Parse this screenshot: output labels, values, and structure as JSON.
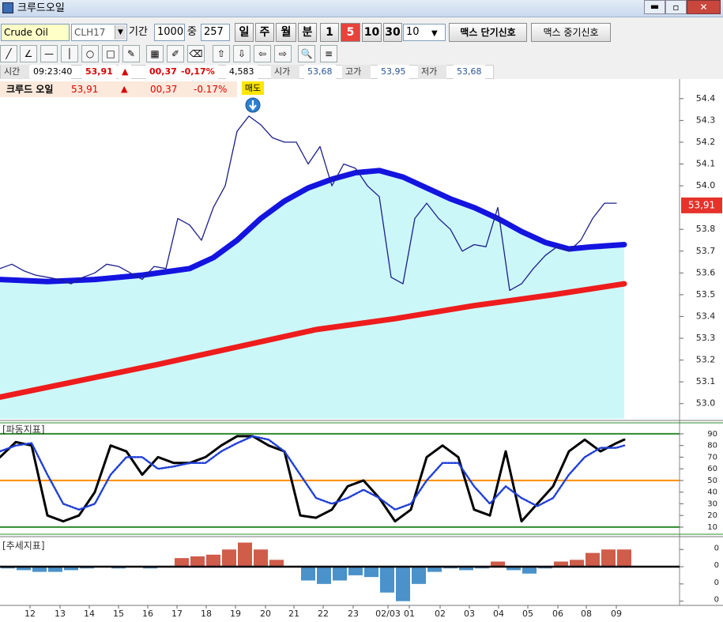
{
  "window": {
    "title": "크루드오일"
  },
  "toolbar": {
    "symbol": "Crude Oil",
    "code": "CLH17",
    "period_label": "기간",
    "period": "1000",
    "mid_label": "중",
    "mid": "257",
    "units": [
      "일",
      "주",
      "월",
      "분"
    ],
    "minutes": [
      "1",
      "5",
      "10",
      "30"
    ],
    "selected_minute": "5",
    "interval": "10",
    "buttons": [
      "맥스 단기신호",
      "맥스 중기신호"
    ]
  },
  "quote_bar": {
    "time_label": "시간",
    "time": "09:23:40",
    "price": "53,91",
    "change": "00,37",
    "change_pct": "-0,17%",
    "volume": "4,583",
    "open_label": "시가",
    "open": "53,68",
    "high_label": "고가",
    "high": "53,95",
    "low_label": "저가",
    "low": "53,68"
  },
  "chart_header": {
    "name": "크루드 오일",
    "price": "53,91",
    "arrow": "▲",
    "change": "00,37",
    "change_pct": "-0.17%"
  },
  "x_axis": {
    "xlim": [
      0,
      172
    ],
    "xticks": [
      {
        "value": 7.6,
        "label": "12"
      },
      {
        "value": 15.2,
        "label": "13"
      },
      {
        "value": 22.6,
        "label": "14"
      },
      {
        "value": 30,
        "label": "15"
      },
      {
        "value": 37.4,
        "label": "16"
      },
      {
        "value": 44.8,
        "label": "17"
      },
      {
        "value": 52.2,
        "label": "18"
      },
      {
        "value": 59.6,
        "label": "19"
      },
      {
        "value": 67.2,
        "label": "20"
      },
      {
        "value": 74.4,
        "label": "21"
      },
      {
        "value": 81.8,
        "label": "22"
      },
      {
        "value": 89.4,
        "label": "23"
      },
      {
        "value": 98.2,
        "label": "02/03"
      },
      {
        "value": 103.6,
        "label": "01"
      },
      {
        "value": 111.4,
        "label": "02"
      },
      {
        "value": 118.8,
        "label": "03"
      },
      {
        "value": 126.2,
        "label": "04"
      },
      {
        "value": 133.6,
        "label": "05"
      },
      {
        "value": 141.2,
        "label": "06"
      },
      {
        "value": 148.4,
        "label": "08"
      },
      {
        "value": 156,
        "label": "09"
      }
    ]
  },
  "price_chart": {
    "type": "line",
    "ylim": [
      52.93,
      54.49
    ],
    "yticks": [
      54.4,
      54.3,
      54.2,
      54.1,
      {
        "value": 54,
        "label": "54.0"
      },
      53.8,
      53.7,
      53.6,
      53.5,
      53.4,
      53.3,
      53.2,
      53.1,
      {
        "value": 53,
        "label": "53.0"
      }
    ],
    "last_label": "53,91",
    "last_value": 53.91,
    "signal": {
      "label": "매도",
      "x": 64
    },
    "area_color": "#ccf7f9",
    "series": [
      {
        "color": "#1b1f8a",
        "x": [
          0,
          3,
          6,
          9,
          12,
          15,
          18,
          21,
          24,
          27,
          30,
          33,
          36,
          39,
          42,
          45,
          48,
          51,
          54,
          57,
          60,
          63,
          66,
          69,
          72,
          75,
          78,
          81,
          84,
          87,
          90,
          93,
          96,
          99,
          102,
          105,
          108,
          111,
          114,
          117,
          120,
          123,
          126,
          129,
          132,
          135,
          138,
          141,
          144,
          147,
          150,
          153,
          156
        ],
        "values": [
          53.62,
          53.64,
          53.61,
          53.59,
          53.58,
          53.57,
          53.55,
          53.58,
          53.6,
          53.64,
          53.63,
          53.6,
          53.57,
          53.63,
          53.62,
          53.85,
          53.82,
          53.75,
          53.9,
          54.0,
          54.25,
          54.32,
          54.28,
          54.22,
          54.2,
          54.2,
          54.1,
          54.18,
          54.0,
          54.1,
          54.08,
          54.0,
          53.95,
          53.58,
          53.55,
          53.85,
          53.92,
          53.85,
          53.8,
          53.7,
          53.73,
          53.72,
          53.9,
          53.52,
          53.55,
          53.62,
          53.68,
          53.72,
          53.7,
          53.75,
          53.85,
          53.92,
          53.92
        ]
      },
      {
        "color": "#1414e0",
        "x": [
          0,
          12,
          24,
          36,
          48,
          54,
          60,
          66,
          72,
          78,
          84,
          90,
          96,
          102,
          108,
          114,
          120,
          126,
          132,
          138,
          144,
          150,
          158
        ],
        "values": [
          53.57,
          53.56,
          53.57,
          53.59,
          53.62,
          53.67,
          53.75,
          53.85,
          53.93,
          53.99,
          54.03,
          54.06,
          54.07,
          54.04,
          53.99,
          53.94,
          53.9,
          53.85,
          53.79,
          53.74,
          53.71,
          53.72,
          53.73
        ]
      },
      {
        "color": "#ee1c1c",
        "x": [
          0,
          40,
          80,
          100,
          120,
          140,
          158
        ],
        "values": [
          53.03,
          53.18,
          53.34,
          53.39,
          53.45,
          53.5,
          53.55
        ]
      }
    ]
  },
  "oscillator": {
    "title": "[파동지표]",
    "type": "line",
    "ylim": [
      2.5,
      100.8
    ],
    "yticks": [
      90,
      80,
      70,
      60,
      50,
      40,
      30,
      20,
      10
    ],
    "levels": [
      {
        "value": 90,
        "color": "#2e8b2e"
      },
      {
        "value": 10,
        "color": "#2e8b2e"
      },
      {
        "value": 50,
        "color": "#ff8c00"
      }
    ],
    "series": [
      {
        "color": "#000000",
        "x": [
          0,
          4,
          8,
          12,
          16,
          20,
          24,
          28,
          32,
          36,
          40,
          44,
          48,
          52,
          56,
          60,
          64,
          68,
          72,
          76,
          80,
          84,
          88,
          92,
          96,
          100,
          104,
          108,
          112,
          116,
          120,
          124,
          128,
          132,
          136,
          140,
          144,
          148,
          152,
          156,
          158
        ],
        "values": [
          70,
          83,
          80,
          20,
          15,
          20,
          40,
          80,
          75,
          55,
          70,
          65,
          65,
          70,
          80,
          88,
          88,
          80,
          75,
          20,
          18,
          25,
          45,
          50,
          35,
          15,
          25,
          70,
          80,
          70,
          25,
          20,
          75,
          15,
          30,
          45,
          75,
          85,
          75,
          82,
          85
        ]
      },
      {
        "color": "#1f3fd6",
        "x": [
          0,
          4,
          8,
          12,
          16,
          20,
          24,
          28,
          32,
          36,
          40,
          44,
          48,
          52,
          56,
          60,
          64,
          68,
          72,
          76,
          80,
          84,
          88,
          92,
          96,
          100,
          104,
          108,
          112,
          116,
          120,
          124,
          128,
          132,
          136,
          140,
          144,
          148,
          152,
          156,
          158
        ],
        "values": [
          75,
          80,
          82,
          55,
          30,
          25,
          30,
          55,
          70,
          70,
          60,
          62,
          65,
          65,
          75,
          82,
          88,
          85,
          75,
          55,
          35,
          30,
          35,
          42,
          35,
          25,
          30,
          50,
          65,
          65,
          45,
          30,
          45,
          35,
          28,
          35,
          55,
          70,
          78,
          78,
          80
        ]
      }
    ]
  },
  "trend": {
    "title": "[추세지표]",
    "type": "bar",
    "ylim": [
      -0.022,
      0.017
    ],
    "yticks": [
      {
        "value": 0.01,
        "label": "0"
      },
      {
        "value": 0,
        "label": "0"
      },
      {
        "value": -0.01,
        "label": "0"
      },
      {
        "value": -0.02,
        "label": "0"
      }
    ],
    "up_color": "#c8402a",
    "down_color": "#2a7fc0",
    "x": [
      2,
      6,
      10,
      14,
      18,
      22,
      26,
      30,
      34,
      38,
      42,
      46,
      50,
      54,
      58,
      62,
      66,
      70,
      74,
      78,
      82,
      86,
      90,
      94,
      98,
      102,
      106,
      110,
      114,
      118,
      122,
      126,
      130,
      134,
      138,
      142,
      146,
      150,
      154,
      158
    ],
    "values": [
      -0.001,
      -0.002,
      -0.003,
      -0.003,
      -0.002,
      -0.001,
      0,
      -0.001,
      0,
      -0.001,
      0,
      0.005,
      0.006,
      0.007,
      0.01,
      0.014,
      0.01,
      0.004,
      0,
      -0.008,
      -0.01,
      -0.008,
      -0.005,
      -0.006,
      -0.015,
      -0.02,
      -0.01,
      -0.003,
      -0.001,
      -0.002,
      -0.001,
      0.003,
      -0.002,
      -0.004,
      -0.001,
      0.003,
      0.004,
      0.008,
      0.01,
      0.01
    ]
  }
}
